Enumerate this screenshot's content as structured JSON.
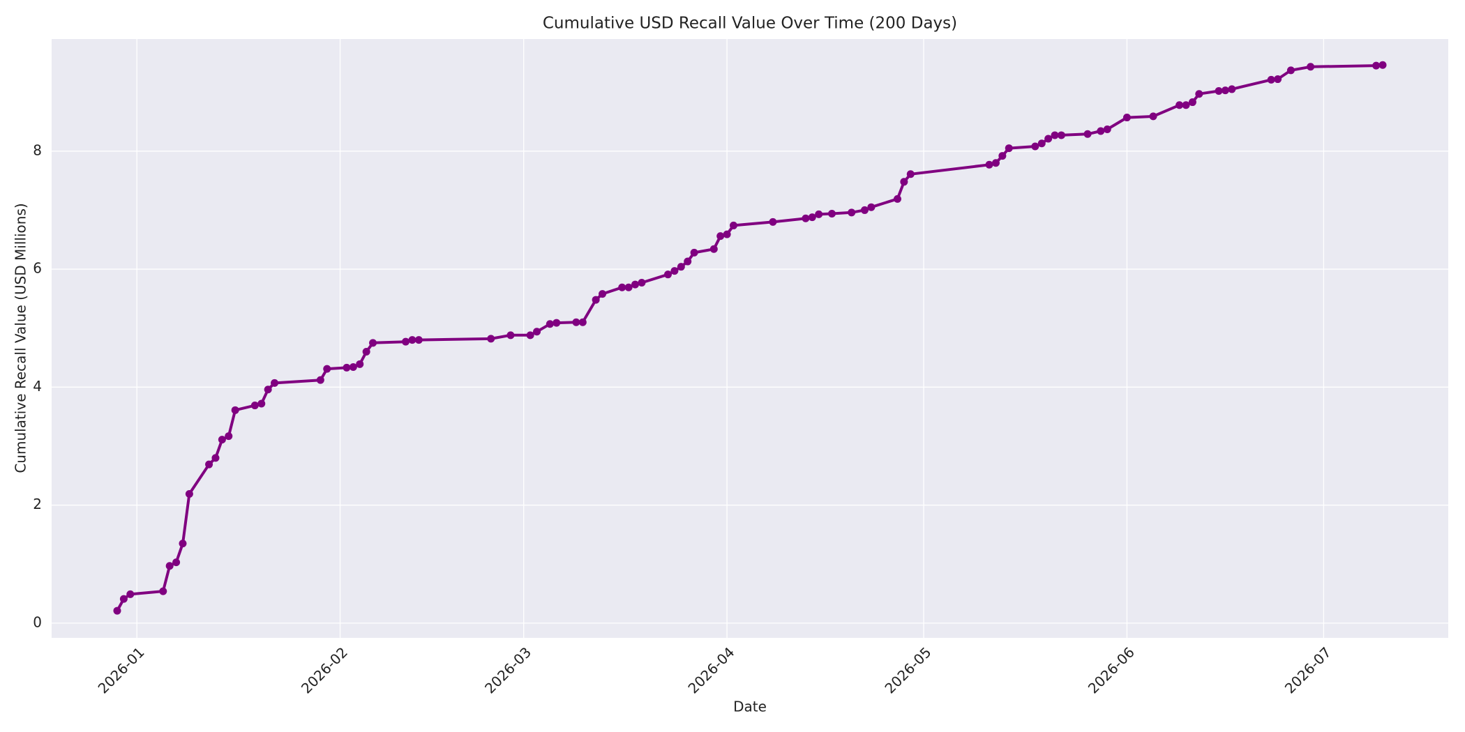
{
  "chart_data": {
    "type": "line",
    "title": "Cumulative USD Recall Value Over Time (200 Days)",
    "x_label": "Date",
    "y_label": "Cumulative Recall Value (USD Millions)",
    "x": [
      "2025-12-29",
      "2025-12-30",
      "2025-12-31",
      "2026-01-05",
      "2026-01-06",
      "2026-01-07",
      "2026-01-08",
      "2026-01-09",
      "2026-01-12",
      "2026-01-13",
      "2026-01-14",
      "2026-01-15",
      "2026-01-16",
      "2026-01-19",
      "2026-01-20",
      "2026-01-21",
      "2026-01-22",
      "2026-01-29",
      "2026-01-30",
      "2026-02-02",
      "2026-02-03",
      "2026-02-04",
      "2026-02-05",
      "2026-02-06",
      "2026-02-11",
      "2026-02-12",
      "2026-02-13",
      "2026-02-24",
      "2026-02-27",
      "2026-03-02",
      "2026-03-03",
      "2026-03-05",
      "2026-03-06",
      "2026-03-09",
      "2026-03-10",
      "2026-03-12",
      "2026-03-13",
      "2026-03-16",
      "2026-03-17",
      "2026-03-18",
      "2026-03-19",
      "2026-03-23",
      "2026-03-24",
      "2026-03-25",
      "2026-03-26",
      "2026-03-27",
      "2026-03-30",
      "2026-03-31",
      "2026-04-01",
      "2026-04-02",
      "2026-04-08",
      "2026-04-13",
      "2026-04-14",
      "2026-04-15",
      "2026-04-17",
      "2026-04-20",
      "2026-04-22",
      "2026-04-23",
      "2026-04-27",
      "2026-04-28",
      "2026-04-29",
      "2026-05-11",
      "2026-05-12",
      "2026-05-13",
      "2026-05-14",
      "2026-05-18",
      "2026-05-19",
      "2026-05-20",
      "2026-05-21",
      "2026-05-22",
      "2026-05-26",
      "2026-05-28",
      "2026-05-29",
      "2026-06-01",
      "2026-06-05",
      "2026-06-09",
      "2026-06-10",
      "2026-06-11",
      "2026-06-12",
      "2026-06-15",
      "2026-06-16",
      "2026-06-17",
      "2026-06-23",
      "2026-06-24",
      "2026-06-26",
      "2026-06-29",
      "2026-07-09",
      "2026-07-10"
    ],
    "series": [
      {
        "name": "Cumulative Recall Value",
        "color": "#800080",
        "values": [
          0.21,
          0.41,
          0.49,
          0.54,
          0.97,
          1.03,
          1.35,
          2.19,
          2.69,
          2.8,
          3.11,
          3.17,
          3.61,
          3.69,
          3.72,
          3.96,
          4.07,
          4.12,
          4.31,
          4.33,
          4.34,
          4.39,
          4.6,
          4.75,
          4.77,
          4.8,
          4.8,
          4.82,
          4.88,
          4.88,
          4.94,
          5.07,
          5.09,
          5.1,
          5.1,
          5.48,
          5.58,
          5.69,
          5.69,
          5.74,
          5.77,
          5.91,
          5.97,
          6.04,
          6.13,
          6.28,
          6.34,
          6.56,
          6.59,
          6.74,
          6.8,
          6.86,
          6.88,
          6.93,
          6.94,
          6.96,
          7.0,
          7.05,
          7.19,
          7.48,
          7.61,
          7.77,
          7.8,
          7.92,
          8.05,
          8.08,
          8.13,
          8.21,
          8.27,
          8.27,
          8.29,
          8.34,
          8.37,
          8.57,
          8.59,
          8.78,
          8.78,
          8.83,
          8.97,
          9.02,
          9.03,
          9.05,
          9.21,
          9.22,
          9.37,
          9.43,
          9.45,
          9.46
        ]
      }
    ],
    "xlim": [
      "2025-12-19",
      "2026-07-20"
    ],
    "xticks": [
      {
        "value": "2026-01-01",
        "label": "2026-01"
      },
      {
        "value": "2026-02-01",
        "label": "2026-02"
      },
      {
        "value": "2026-03-01",
        "label": "2026-03"
      },
      {
        "value": "2026-04-01",
        "label": "2026-04"
      },
      {
        "value": "2026-05-01",
        "label": "2026-05"
      },
      {
        "value": "2026-06-01",
        "label": "2026-06"
      },
      {
        "value": "2026-07-01",
        "label": "2026-07"
      }
    ],
    "ylim": [
      -0.25,
      9.9
    ],
    "yticks": [
      0,
      2,
      4,
      6,
      8
    ],
    "grid": true
  }
}
